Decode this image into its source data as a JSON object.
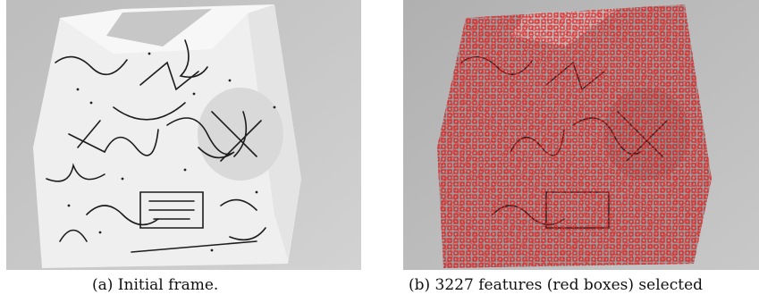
{
  "figure": {
    "panels": [
      {
        "caption": "(a) Initial frame.",
        "content": "grayscale photo of a box with scribbles",
        "overlay": null
      },
      {
        "caption": "(b) 3227 features (red boxes) selected",
        "content": "same grayscale photo with feature boxes",
        "overlay": {
          "type": "feature-boxes",
          "count": 3227,
          "color": "#e00000"
        }
      }
    ]
  },
  "colors": {
    "background_gray": "#c8c8c8",
    "box_white": "#f3f3f3",
    "ink": "#1a1a1a",
    "feature_red": "#e00000"
  }
}
